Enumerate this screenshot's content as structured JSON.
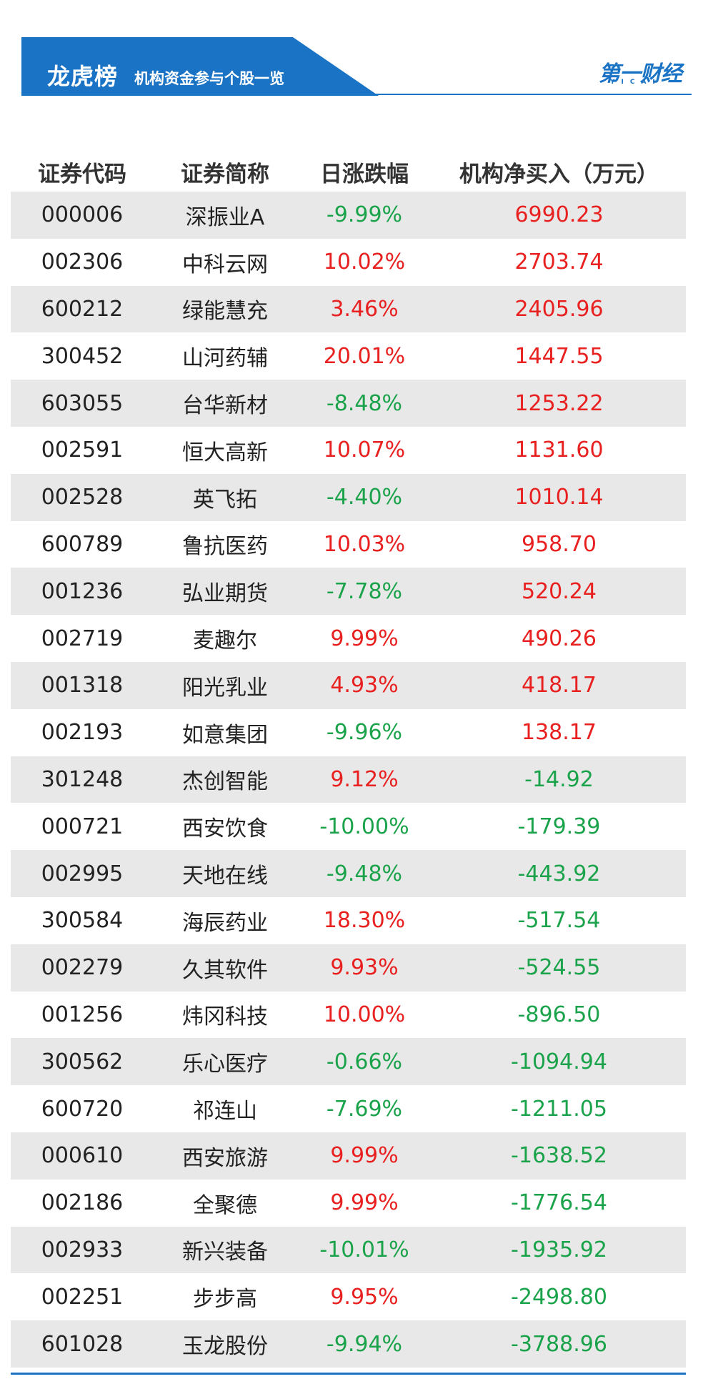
{
  "header": {
    "title": "龙虎榜",
    "subtitle": "机构资金参与个股一览",
    "brand_name": "第一财经",
    "brand_sub": "YICAI",
    "accent_color": "#1a73c4"
  },
  "table": {
    "columns": [
      "证券代码",
      "证券简称",
      "日涨跌幅",
      "机构净买入（万元）"
    ],
    "rows": [
      {
        "code": "000006",
        "name": "深振业A",
        "change": "-9.99%",
        "net": "6990.23"
      },
      {
        "code": "002306",
        "name": "中科云网",
        "change": "10.02%",
        "net": "2703.74"
      },
      {
        "code": "600212",
        "name": "绿能慧充",
        "change": "3.46%",
        "net": "2405.96"
      },
      {
        "code": "300452",
        "name": "山河药辅",
        "change": "20.01%",
        "net": "1447.55"
      },
      {
        "code": "603055",
        "name": "台华新材",
        "change": "-8.48%",
        "net": "1253.22"
      },
      {
        "code": "002591",
        "name": "恒大高新",
        "change": "10.07%",
        "net": "1131.60"
      },
      {
        "code": "002528",
        "name": "英飞拓",
        "change": "-4.40%",
        "net": "1010.14"
      },
      {
        "code": "600789",
        "name": "鲁抗医药",
        "change": "10.03%",
        "net": "958.70"
      },
      {
        "code": "001236",
        "name": "弘业期货",
        "change": "-7.78%",
        "net": "520.24"
      },
      {
        "code": "002719",
        "name": "麦趣尔",
        "change": "9.99%",
        "net": "490.26"
      },
      {
        "code": "001318",
        "name": "阳光乳业",
        "change": "4.93%",
        "net": "418.17"
      },
      {
        "code": "002193",
        "name": "如意集团",
        "change": "-9.96%",
        "net": "138.17"
      },
      {
        "code": "301248",
        "name": "杰创智能",
        "change": "9.12%",
        "net": "-14.92"
      },
      {
        "code": "000721",
        "name": "西安饮食",
        "change": "-10.00%",
        "net": "-179.39"
      },
      {
        "code": "002995",
        "name": "天地在线",
        "change": "-9.48%",
        "net": "-443.92"
      },
      {
        "code": "300584",
        "name": "海辰药业",
        "change": "18.30%",
        "net": "-517.54"
      },
      {
        "code": "002279",
        "name": "久其软件",
        "change": "9.93%",
        "net": "-524.55"
      },
      {
        "code": "001256",
        "name": "炜冈科技",
        "change": "10.00%",
        "net": "-896.50"
      },
      {
        "code": "300562",
        "name": "乐心医疗",
        "change": "-0.66%",
        "net": "-1094.94"
      },
      {
        "code": "600720",
        "name": "祁连山",
        "change": "-7.69%",
        "net": "-1211.05"
      },
      {
        "code": "000610",
        "name": "西安旅游",
        "change": "9.99%",
        "net": "-1638.52"
      },
      {
        "code": "002186",
        "name": "全聚德",
        "change": "9.99%",
        "net": "-1776.54"
      },
      {
        "code": "002933",
        "name": "新兴装备",
        "change": "-10.01%",
        "net": "-1935.92"
      },
      {
        "code": "002251",
        "name": "步步高",
        "change": "9.95%",
        "net": "-2498.80"
      },
      {
        "code": "601028",
        "name": "玉龙股份",
        "change": "-9.94%",
        "net": "-3788.96"
      }
    ]
  },
  "colors": {
    "up": "#e8201f",
    "down": "#1aa34a",
    "row_stripe": "#e8e8e8"
  }
}
